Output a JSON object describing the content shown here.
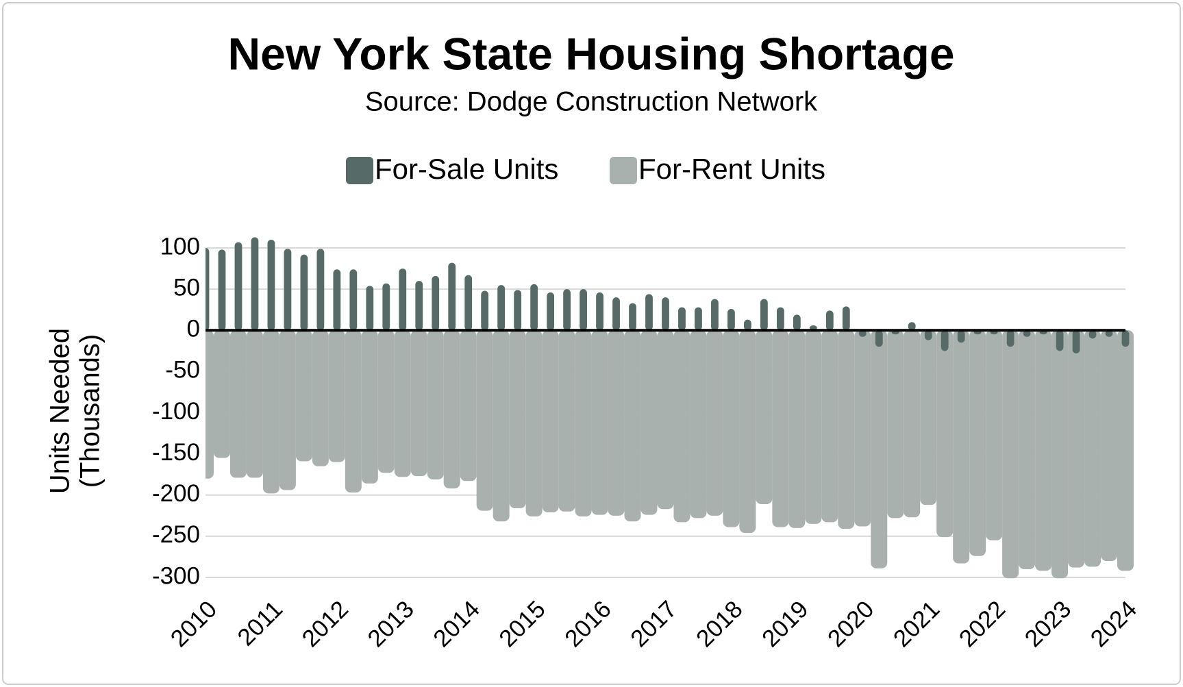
{
  "chart_data": {
    "type": "bar",
    "title": "New York State Housing Shortage",
    "subtitle": "Source: Dodge Construction Network",
    "y_label": [
      "Units Needed",
      "(Thousands)"
    ],
    "categories": [
      "2010",
      null,
      null,
      null,
      "2011",
      null,
      null,
      null,
      "2012",
      null,
      null,
      null,
      "2013",
      null,
      null,
      null,
      "2014",
      null,
      null,
      null,
      "2015",
      null,
      null,
      null,
      "2016",
      null,
      null,
      null,
      "2017",
      null,
      null,
      null,
      "2018",
      null,
      null,
      null,
      "2019",
      null,
      null,
      null,
      "2020",
      null,
      null,
      null,
      "2021",
      null,
      null,
      null,
      "2022",
      null,
      null,
      null,
      "2023",
      null,
      null,
      null,
      "2024"
    ],
    "series": [
      {
        "name": "For-Sale Units",
        "color": "#566b68",
        "values": [
          100,
          98,
          107,
          113,
          110,
          99,
          92,
          99,
          74,
          74,
          54,
          57,
          75,
          60,
          66,
          82,
          67,
          48,
          55,
          49,
          56,
          46,
          50,
          50,
          46,
          40,
          33,
          44,
          40,
          28,
          28,
          38,
          26,
          13,
          38,
          28,
          19,
          6,
          24,
          29,
          -8,
          -20,
          -5,
          10,
          -12,
          -25,
          -15,
          -5,
          -5,
          -20,
          -8,
          -5,
          -25,
          -28,
          -10,
          -8,
          -20
        ]
      },
      {
        "name": "For-Rent Units",
        "color": "#a9b1af",
        "values": [
          -180,
          -155,
          -179,
          -179,
          -198,
          -194,
          -159,
          -165,
          -160,
          -197,
          -186,
          -173,
          -178,
          -177,
          -181,
          -192,
          -183,
          -219,
          -232,
          -216,
          -226,
          -221,
          -220,
          -226,
          -224,
          -225,
          -232,
          -224,
          -217,
          -233,
          -228,
          -225,
          -239,
          -246,
          -211,
          -239,
          -240,
          -235,
          -233,
          -241,
          -238,
          -289,
          -228,
          -227,
          -212,
          -251,
          -283,
          -274,
          -255,
          -301,
          -290,
          -292,
          -301,
          -288,
          -287,
          -280,
          -292
        ]
      }
    ],
    "ylim": [
      -300,
      100
    ],
    "yticks": [
      -300,
      -250,
      -200,
      -150,
      -100,
      -50,
      0,
      50,
      100
    ],
    "grid": true
  }
}
